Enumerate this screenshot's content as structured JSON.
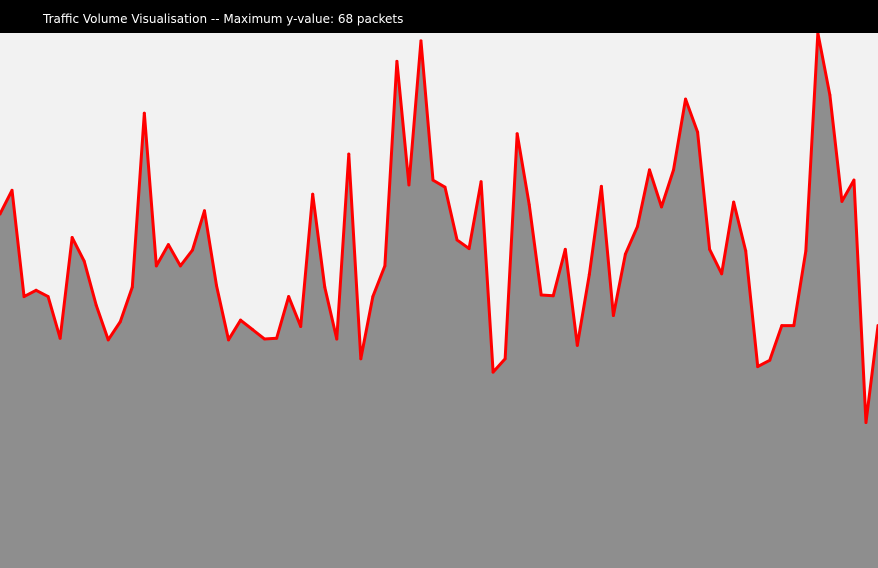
{
  "title": "Traffic Volume Visualisation -- Maximum y-value: 68 packets",
  "colors": {
    "plot_background": "#f2f2f2",
    "area_fill": "#8e8e8e",
    "line": "#ff0000",
    "title_bar": "#000000",
    "title_text": "#ffffff"
  },
  "chart_data": {
    "type": "area",
    "title": "Traffic Volume Visualisation -- Maximum y-value: 68 packets",
    "xlabel": "",
    "ylabel": "",
    "ylim": [
      0,
      68
    ],
    "grid": false,
    "legend": "none",
    "series": [
      {
        "values": [
          45,
          48,
          34.5,
          35.3,
          34.5,
          29.2,
          42,
          39,
          33.4,
          29,
          31.3,
          35.7,
          57.8,
          38.4,
          41.1,
          38.4,
          40.4,
          45.4,
          35.9,
          29,
          31.5,
          30.3,
          29.1,
          29.2,
          34.5,
          30.7,
          47.5,
          35.7,
          29.1,
          52.6,
          26.6,
          34.5,
          38.4,
          64.4,
          48.7,
          67,
          49.3,
          48.4,
          41.7,
          40.6,
          49.1,
          24.9,
          26.6,
          55.2,
          46.2,
          34.7,
          34.6,
          40.5,
          28.3,
          37.3,
          48.5,
          32.1,
          39.9,
          43.4,
          50.6,
          45.9,
          50.6,
          59.6,
          55.4,
          40.5,
          37.4,
          46.5,
          40.3,
          25.6,
          26.4,
          30.8,
          30.8,
          40.3,
          68,
          60.1,
          46.6,
          49.3,
          18.5,
          30.8
        ]
      }
    ]
  }
}
